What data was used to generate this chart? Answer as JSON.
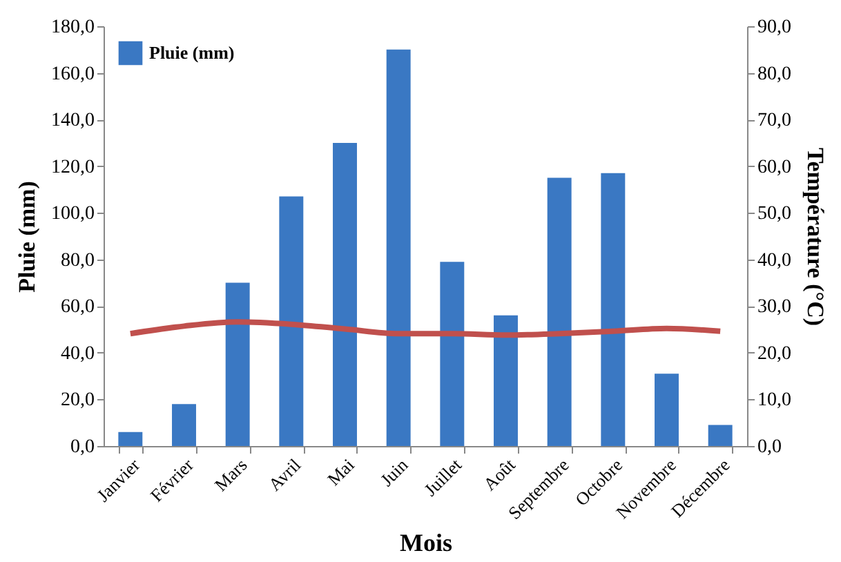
{
  "chart_data": {
    "type": "bar",
    "xlabel": "Mois",
    "ylabel": "Pluie (mm)",
    "y2label": "Température  (°C)",
    "categories": [
      "Janvier",
      "Février",
      "Mars",
      "Avril",
      "Mai",
      "Juin",
      "Juillet",
      "Août",
      "Septembre",
      "Octobre",
      "Novembre",
      "Décembre"
    ],
    "series": [
      {
        "name": "Pluie (mm)",
        "color": "#3a78c3",
        "values": [
          6,
          18,
          70,
          107,
          130,
          170,
          79,
          56,
          115,
          117,
          31,
          9
        ]
      },
      {
        "type": "line",
        "axis": "y2",
        "color": "#c0504d",
        "values": [
          24.1,
          25.7,
          26.6,
          26.1,
          25.1,
          24.1,
          24.1,
          23.8,
          24.1,
          24.6,
          25.2,
          24.6
        ]
      }
    ],
    "ylim": [
      0,
      180
    ],
    "yticks": [
      {
        "value": 0,
        "label": "0,0"
      },
      {
        "value": 20,
        "label": "20,0"
      },
      {
        "value": 40,
        "label": "40,0"
      },
      {
        "value": 60,
        "label": "60,0"
      },
      {
        "value": 80,
        "label": "80,0"
      },
      {
        "value": 100,
        "label": "100,0"
      },
      {
        "value": 120,
        "label": "120,0"
      },
      {
        "value": 140,
        "label": "140,0"
      },
      {
        "value": 160,
        "label": "160,0"
      },
      {
        "value": 180,
        "label": "180,0"
      }
    ],
    "y2lim": [
      0,
      90
    ],
    "y2ticks": [
      {
        "value": 0,
        "label": "0,0"
      },
      {
        "value": 10,
        "label": "10,0"
      },
      {
        "value": 20,
        "label": "20,0"
      },
      {
        "value": 30,
        "label": "30,0"
      },
      {
        "value": 40,
        "label": "40,0"
      },
      {
        "value": 50,
        "label": "50,0"
      },
      {
        "value": 60,
        "label": "60,0"
      },
      {
        "value": 70,
        "label": "70,0"
      },
      {
        "value": 80,
        "label": "80,0"
      },
      {
        "value": 90,
        "label": "90,0"
      }
    ],
    "grid": false,
    "legend": "top left",
    "line_style": "solid",
    "marker": "none"
  }
}
